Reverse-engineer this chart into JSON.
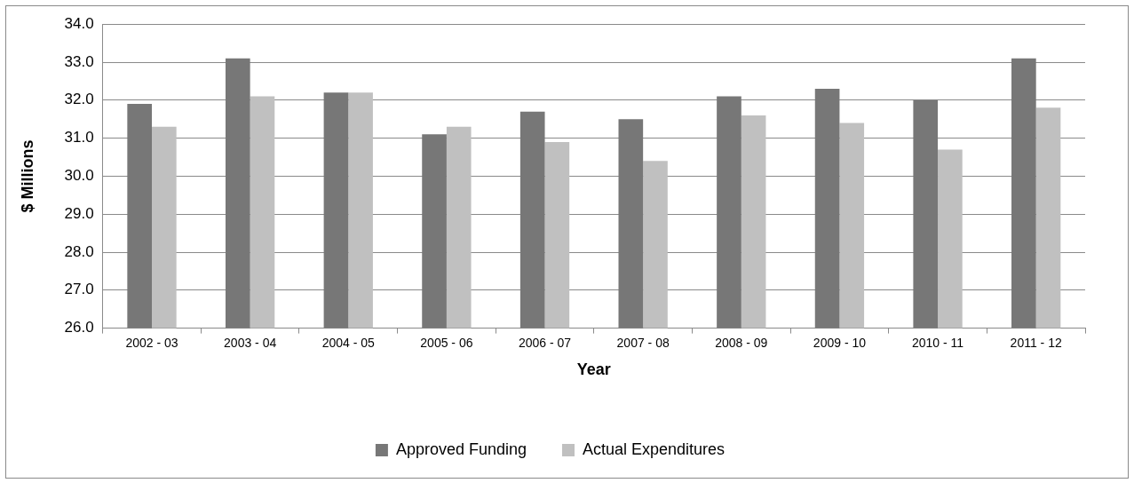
{
  "chart_data": {
    "type": "bar",
    "xlabel": "Year",
    "ylabel": "$ Millions",
    "categories": [
      "2002 - 03",
      "2003 - 04",
      "2004 - 05",
      "2005 - 06",
      "2006 - 07",
      "2007 - 08",
      "2008 - 09",
      "2009 - 10",
      "2010 - 11",
      "2011 - 12"
    ],
    "series": [
      {
        "name": "Approved Funding",
        "color": "#777777",
        "values": [
          31.9,
          33.1,
          32.2,
          31.1,
          31.7,
          31.5,
          32.1,
          32.3,
          32.0,
          33.1
        ]
      },
      {
        "name": "Actual Expenditures",
        "color": "#c0c0c0",
        "values": [
          31.3,
          32.1,
          32.2,
          31.3,
          30.9,
          30.4,
          31.6,
          31.4,
          30.7,
          31.8
        ]
      }
    ],
    "ylim": [
      26,
      34
    ],
    "yticks": [
      {
        "value": 26,
        "label": "26.0"
      },
      {
        "value": 27,
        "label": "27.0"
      },
      {
        "value": 28,
        "label": "28.0"
      },
      {
        "value": 29,
        "label": "29.0"
      },
      {
        "value": 30,
        "label": "30.0"
      },
      {
        "value": 31,
        "label": "31.0"
      },
      {
        "value": 32,
        "label": "32.0"
      },
      {
        "value": 33,
        "label": "33.0"
      },
      {
        "value": 34,
        "label": "34.0"
      }
    ],
    "grid": "y",
    "legend": "bottom"
  }
}
